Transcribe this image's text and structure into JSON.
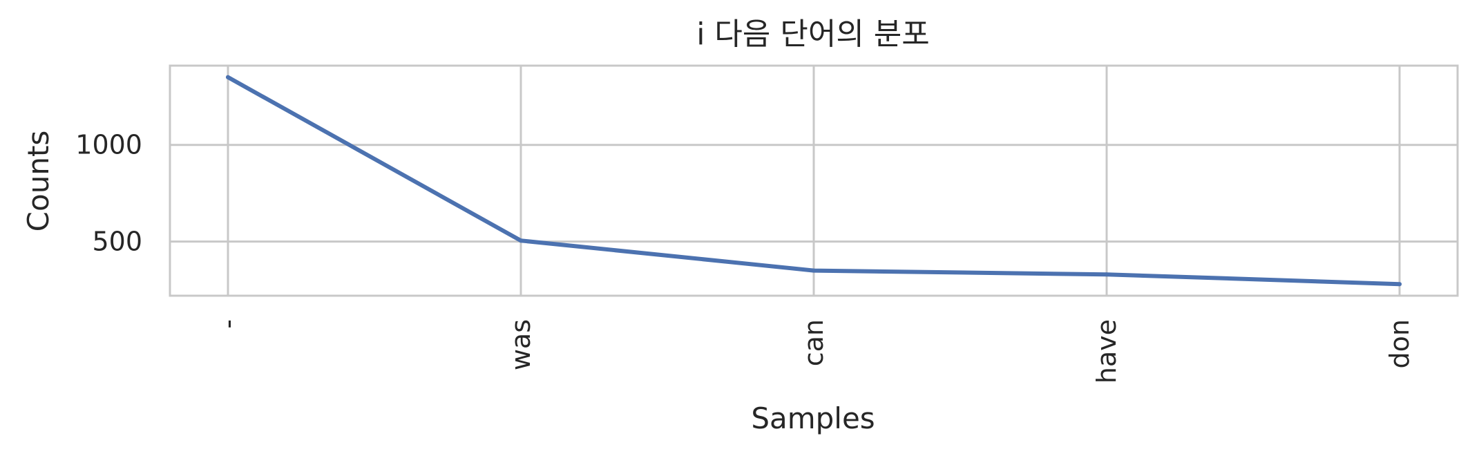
{
  "chart_data": {
    "type": "line",
    "title": "i 다음 단어의 분포",
    "xlabel": "Samples",
    "ylabel": "Counts",
    "categories": [
      "-",
      "was",
      "can",
      "have",
      "don"
    ],
    "series": [
      {
        "values": [
          1350,
          505,
          350,
          330,
          280
        ]
      }
    ],
    "yticks": [
      500,
      1000
    ],
    "ylim": [
      220,
      1410
    ],
    "grid": true,
    "legend": "none",
    "colors": {
      "line": "#4c72b0",
      "grid": "#c8c8c8",
      "text": "#262626"
    }
  }
}
